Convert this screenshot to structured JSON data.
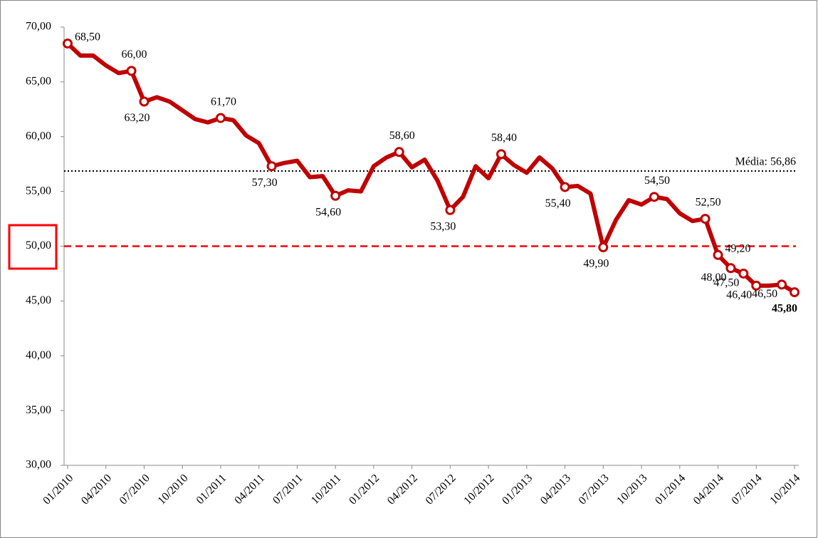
{
  "chart_data": {
    "type": "line",
    "categories": [
      "01/2010",
      null,
      null,
      "04/2010",
      null,
      null,
      "07/2010",
      null,
      null,
      "10/2010",
      null,
      null,
      "01/2011",
      null,
      null,
      "04/2011",
      null,
      null,
      "07/2011",
      null,
      null,
      "10/2011",
      null,
      null,
      "01/2012",
      null,
      null,
      "04/2012",
      null,
      null,
      "07/2012",
      null,
      null,
      "10/2012",
      null,
      null,
      "01/2013",
      null,
      null,
      "04/2013",
      null,
      null,
      "07/2013",
      null,
      null,
      "10/2013",
      null,
      null,
      "01/2014",
      null,
      null,
      "04/2014",
      null,
      null,
      "07/2014",
      null,
      null,
      "10/2014"
    ],
    "series": [
      {
        "color": "#c00000",
        "values": [
          68.5,
          67.4,
          67.4,
          66.5,
          65.8,
          66.0,
          63.2,
          63.6,
          63.2,
          62.4,
          61.6,
          61.3,
          61.7,
          61.5,
          60.1,
          59.4,
          57.3,
          57.6,
          57.8,
          56.3,
          56.4,
          54.6,
          55.1,
          55.0,
          57.3,
          58.1,
          58.6,
          57.2,
          57.9,
          56.0,
          53.3,
          54.5,
          57.3,
          56.2,
          58.4,
          57.4,
          56.7,
          58.1,
          57.1,
          55.4,
          55.5,
          54.8,
          49.9,
          52.4,
          54.2,
          53.8,
          54.5,
          54.3,
          53.0,
          52.3,
          52.5,
          49.2,
          48.0,
          47.5,
          46.4,
          46.4,
          46.5,
          45.8
        ],
        "value_labels": [
          "68,50",
          null,
          null,
          null,
          null,
          "66,00",
          "63,20",
          null,
          null,
          null,
          null,
          null,
          "61,70",
          null,
          null,
          null,
          "57,30",
          null,
          null,
          null,
          null,
          "54,60",
          null,
          null,
          null,
          null,
          "58,60",
          null,
          null,
          null,
          "53,30",
          null,
          null,
          null,
          "58,40",
          null,
          null,
          null,
          null,
          "55,40",
          null,
          null,
          "49,90",
          null,
          null,
          null,
          "54,50",
          null,
          null,
          null,
          "52,50",
          "49,20",
          "48,00",
          "47,50",
          "46,40",
          null,
          "46,50",
          "45,80"
        ]
      }
    ],
    "ylim": [
      30,
      70
    ],
    "yticks": [
      {
        "value": 30,
        "label": "30,00"
      },
      {
        "value": 35,
        "label": "35,00"
      },
      {
        "value": 40,
        "label": "40,00"
      },
      {
        "value": 45,
        "label": "45,00"
      },
      {
        "value": 50,
        "label": "50,00"
      },
      {
        "value": 55,
        "label": "55,00"
      },
      {
        "value": 60,
        "label": "60,00"
      },
      {
        "value": 65,
        "label": "65,00"
      },
      {
        "value": 70,
        "label": "70,00"
      }
    ],
    "mean": {
      "value": 56.86,
      "label": "Média: 56,86"
    },
    "reference_line": {
      "value": 50,
      "color": "#ff0000"
    }
  }
}
